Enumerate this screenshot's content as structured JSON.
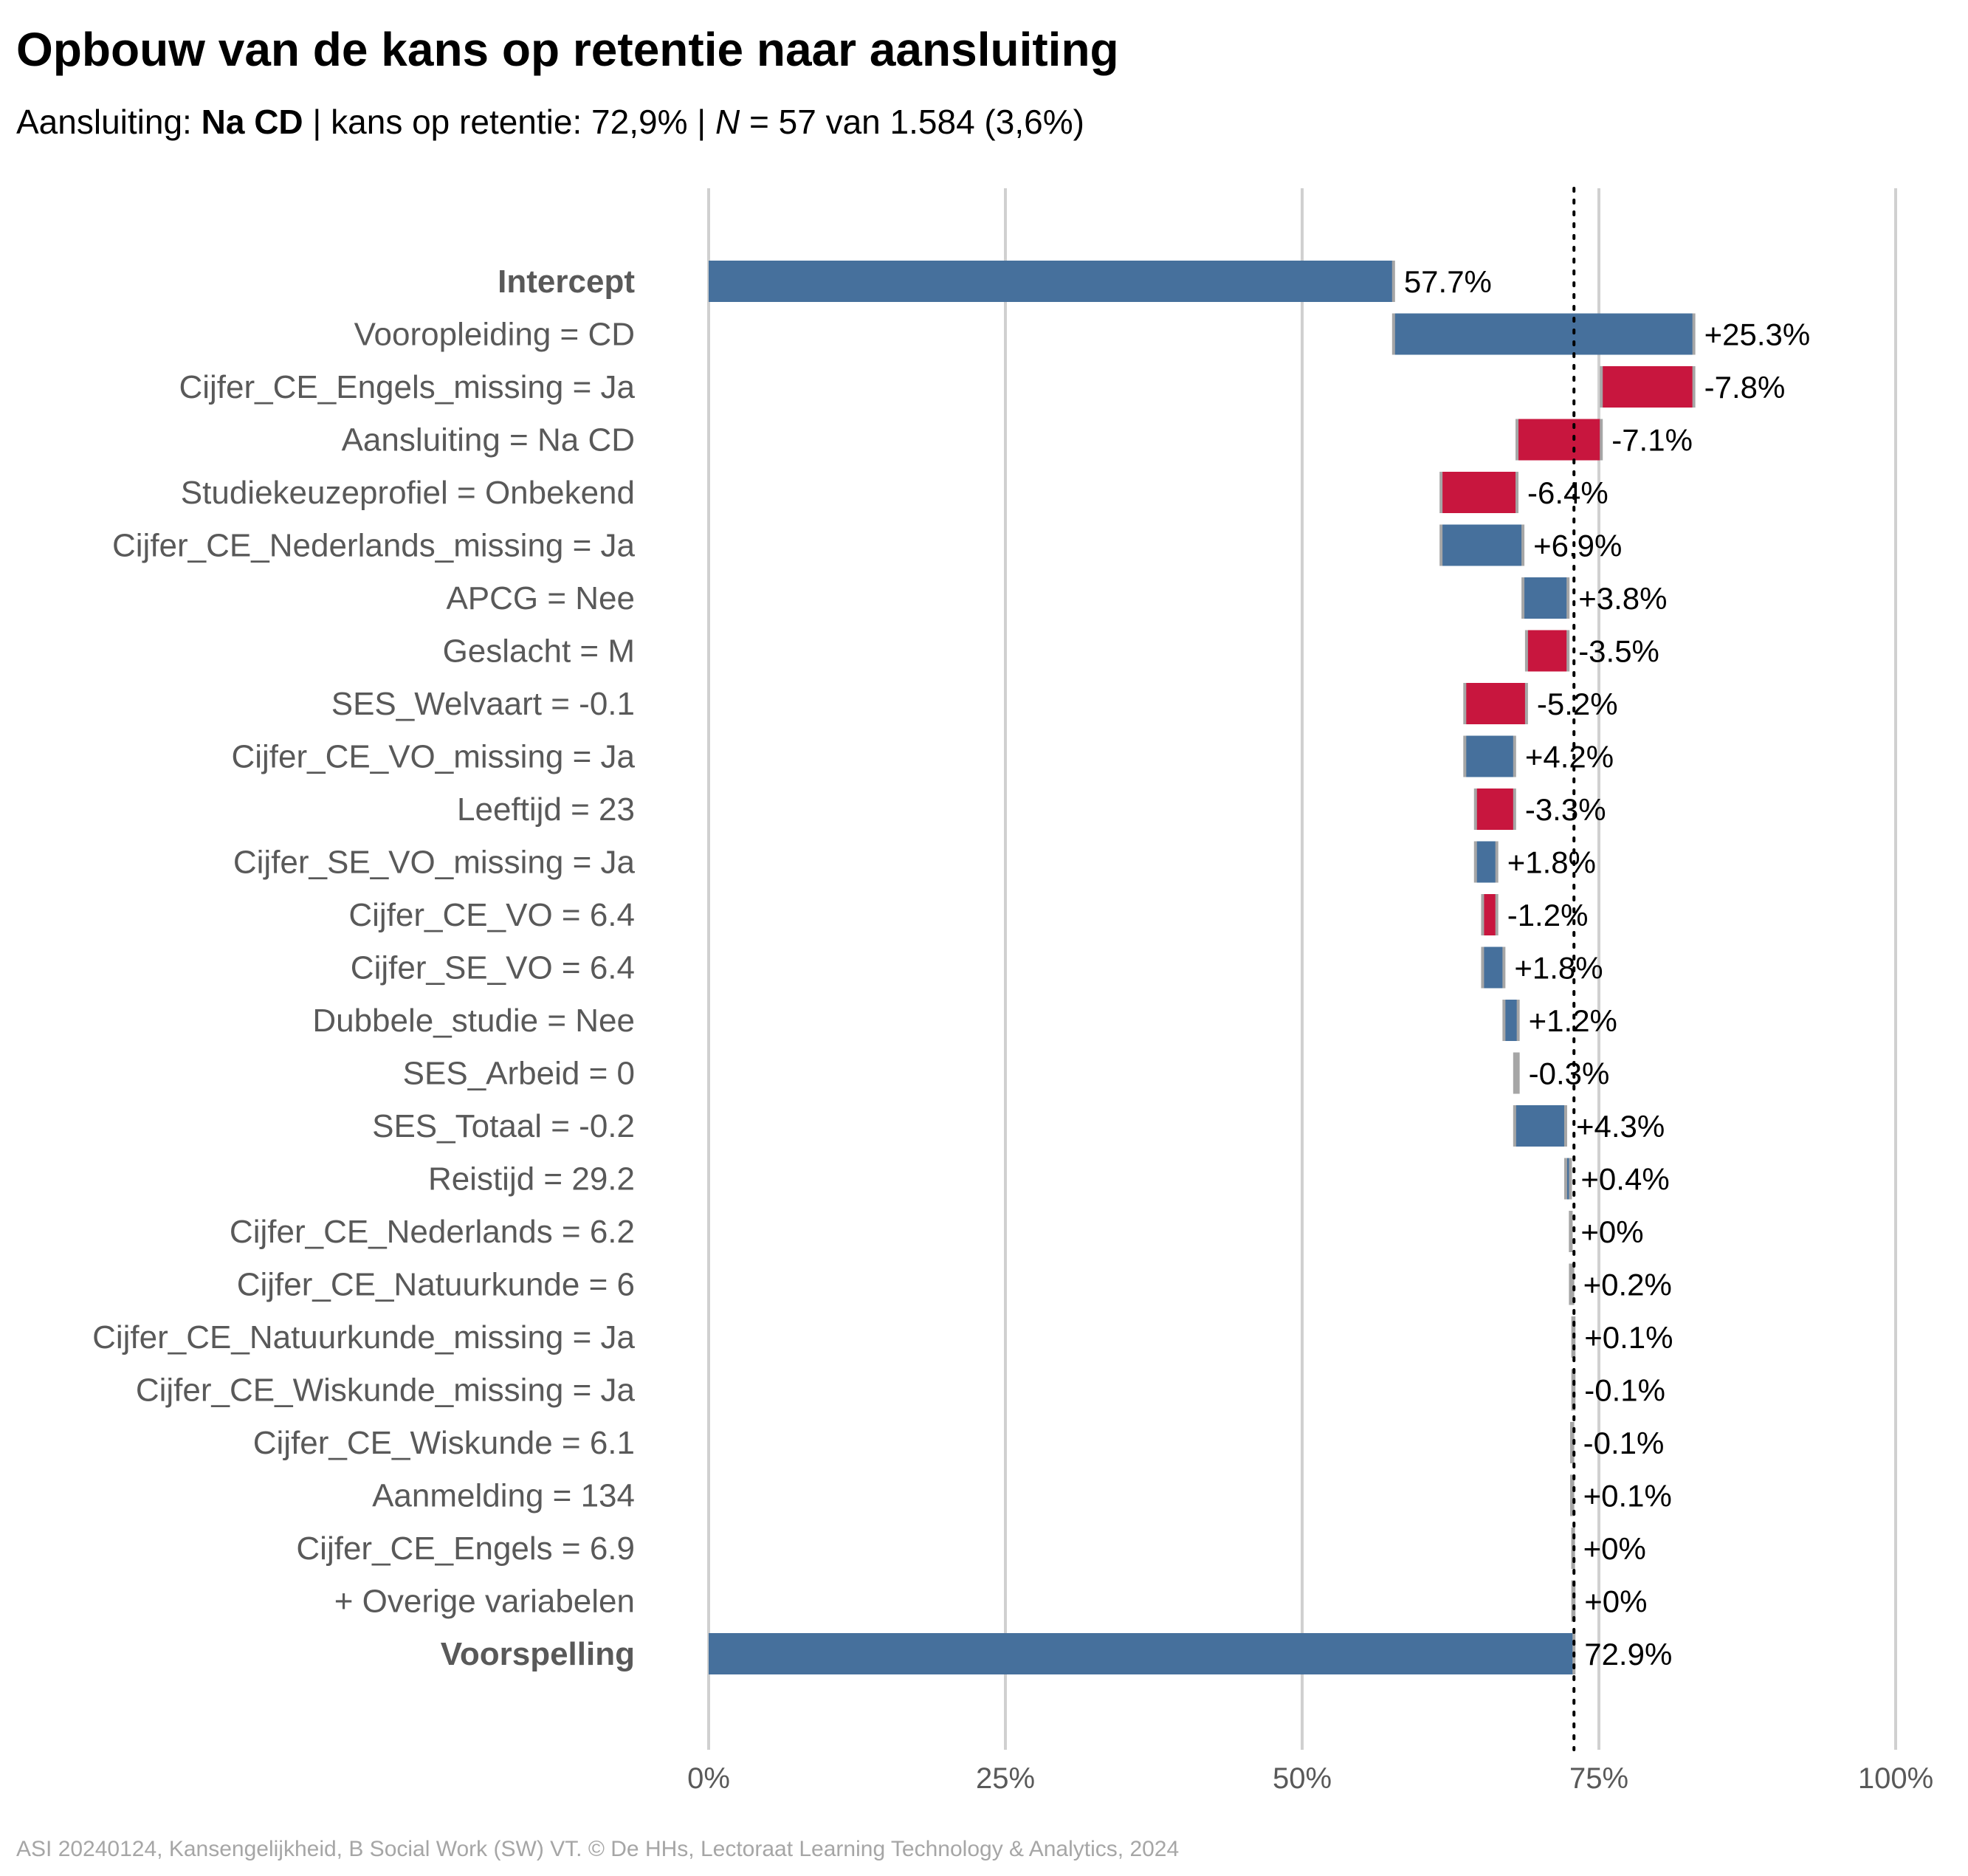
{
  "title": "Opbouw van de kans op retentie naar aansluiting",
  "subtitle": {
    "prefix": "Aansluiting: ",
    "group": "Na CD",
    "mid": " | kans op retentie: 72,9% | ",
    "n_label": "N",
    "suffix": " = 57 van 1.584 (3,6%)"
  },
  "caption": "ASI 20240124, Kansengelijkheid, B Social Work (SW) VT. © De HHs, Lectoraat Learning Technology & Analytics, 2024",
  "colors": {
    "positive": "#46709c",
    "negative": "#c8163e",
    "neutral": "#a6a6a6",
    "grid": "#d0d0d0",
    "axis_text": "#595959",
    "label_text": "#595959",
    "value_text": "#000000"
  },
  "chart_data": {
    "type": "waterfall",
    "xlim": [
      0,
      100
    ],
    "x_ticks": [
      {
        "value": 0,
        "label": "0%"
      },
      {
        "value": 25,
        "label": "25%"
      },
      {
        "value": 50,
        "label": "50%"
      },
      {
        "value": 75,
        "label": "75%"
      },
      {
        "value": 100,
        "label": "100%"
      }
    ],
    "reference_line": 72.9,
    "grid": true,
    "rows": [
      {
        "label": "Intercept",
        "kind": "total",
        "start": 0,
        "end": 57.7,
        "value_label": "57.7%"
      },
      {
        "label": "Vooropleiding = CD",
        "kind": "step",
        "start": 57.7,
        "end": 83.0,
        "value_label": "+25.3%"
      },
      {
        "label": "Cijfer_CE_Engels_missing = Ja",
        "kind": "step",
        "start": 83.0,
        "end": 75.2,
        "value_label": "-7.8%"
      },
      {
        "label": "Aansluiting = Na CD",
        "kind": "step",
        "start": 75.2,
        "end": 68.1,
        "value_label": "-7.1%"
      },
      {
        "label": "Studiekeuzeprofiel = Onbekend",
        "kind": "step",
        "start": 68.1,
        "end": 61.7,
        "value_label": "-6.4%"
      },
      {
        "label": "Cijfer_CE_Nederlands_missing = Ja",
        "kind": "step",
        "start": 61.7,
        "end": 68.6,
        "value_label": "+6.9%"
      },
      {
        "label": "APCG = Nee",
        "kind": "step",
        "start": 68.6,
        "end": 72.4,
        "value_label": "+3.8%"
      },
      {
        "label": "Geslacht = M",
        "kind": "step",
        "start": 72.4,
        "end": 68.9,
        "value_label": "-3.5%"
      },
      {
        "label": "SES_Welvaart = -0.1",
        "kind": "step",
        "start": 68.9,
        "end": 63.7,
        "value_label": "-5.2%"
      },
      {
        "label": "Cijfer_CE_VO_missing = Ja",
        "kind": "step",
        "start": 63.7,
        "end": 67.9,
        "value_label": "+4.2%"
      },
      {
        "label": "Leeftijd = 23",
        "kind": "step",
        "start": 67.9,
        "end": 64.6,
        "value_label": "-3.3%"
      },
      {
        "label": "Cijfer_SE_VO_missing = Ja",
        "kind": "step",
        "start": 64.6,
        "end": 66.4,
        "value_label": "+1.8%"
      },
      {
        "label": "Cijfer_CE_VO = 6.4",
        "kind": "step",
        "start": 66.4,
        "end": 65.2,
        "value_label": "-1.2%"
      },
      {
        "label": "Cijfer_SE_VO = 6.4",
        "kind": "step",
        "start": 65.2,
        "end": 67.0,
        "value_label": "+1.8%"
      },
      {
        "label": "Dubbele_studie = Nee",
        "kind": "step",
        "start": 67.0,
        "end": 68.2,
        "value_label": "+1.2%"
      },
      {
        "label": "SES_Arbeid = 0",
        "kind": "step",
        "start": 68.2,
        "end": 67.9,
        "value_label": "-0.3%"
      },
      {
        "label": "SES_Totaal = -0.2",
        "kind": "step",
        "start": 67.9,
        "end": 72.2,
        "value_label": "+4.3%"
      },
      {
        "label": "Reistijd = 29.2",
        "kind": "step",
        "start": 72.2,
        "end": 72.6,
        "value_label": "+0.4%"
      },
      {
        "label": "Cijfer_CE_Nederlands = 6.2",
        "kind": "step",
        "start": 72.6,
        "end": 72.6,
        "value_label": "+0%"
      },
      {
        "label": "Cijfer_CE_Natuurkunde = 6",
        "kind": "step",
        "start": 72.6,
        "end": 72.8,
        "value_label": "+0.2%"
      },
      {
        "label": "Cijfer_CE_Natuurkunde_missing = Ja",
        "kind": "step",
        "start": 72.8,
        "end": 72.9,
        "value_label": "+0.1%"
      },
      {
        "label": "Cijfer_CE_Wiskunde_missing = Ja",
        "kind": "step",
        "start": 72.9,
        "end": 72.8,
        "value_label": "-0.1%"
      },
      {
        "label": "Cijfer_CE_Wiskunde = 6.1",
        "kind": "step",
        "start": 72.8,
        "end": 72.7,
        "value_label": "-0.1%"
      },
      {
        "label": "Aanmelding = 134",
        "kind": "step",
        "start": 72.7,
        "end": 72.8,
        "value_label": "+0.1%"
      },
      {
        "label": "Cijfer_CE_Engels = 6.9",
        "kind": "step",
        "start": 72.8,
        "end": 72.8,
        "value_label": "+0%"
      },
      {
        "label": "+ Overige variabelen",
        "kind": "step",
        "start": 72.8,
        "end": 72.9,
        "value_label": "+0%"
      },
      {
        "label": "Voorspelling",
        "kind": "total",
        "start": 0,
        "end": 72.9,
        "value_label": "72.9%"
      }
    ]
  }
}
